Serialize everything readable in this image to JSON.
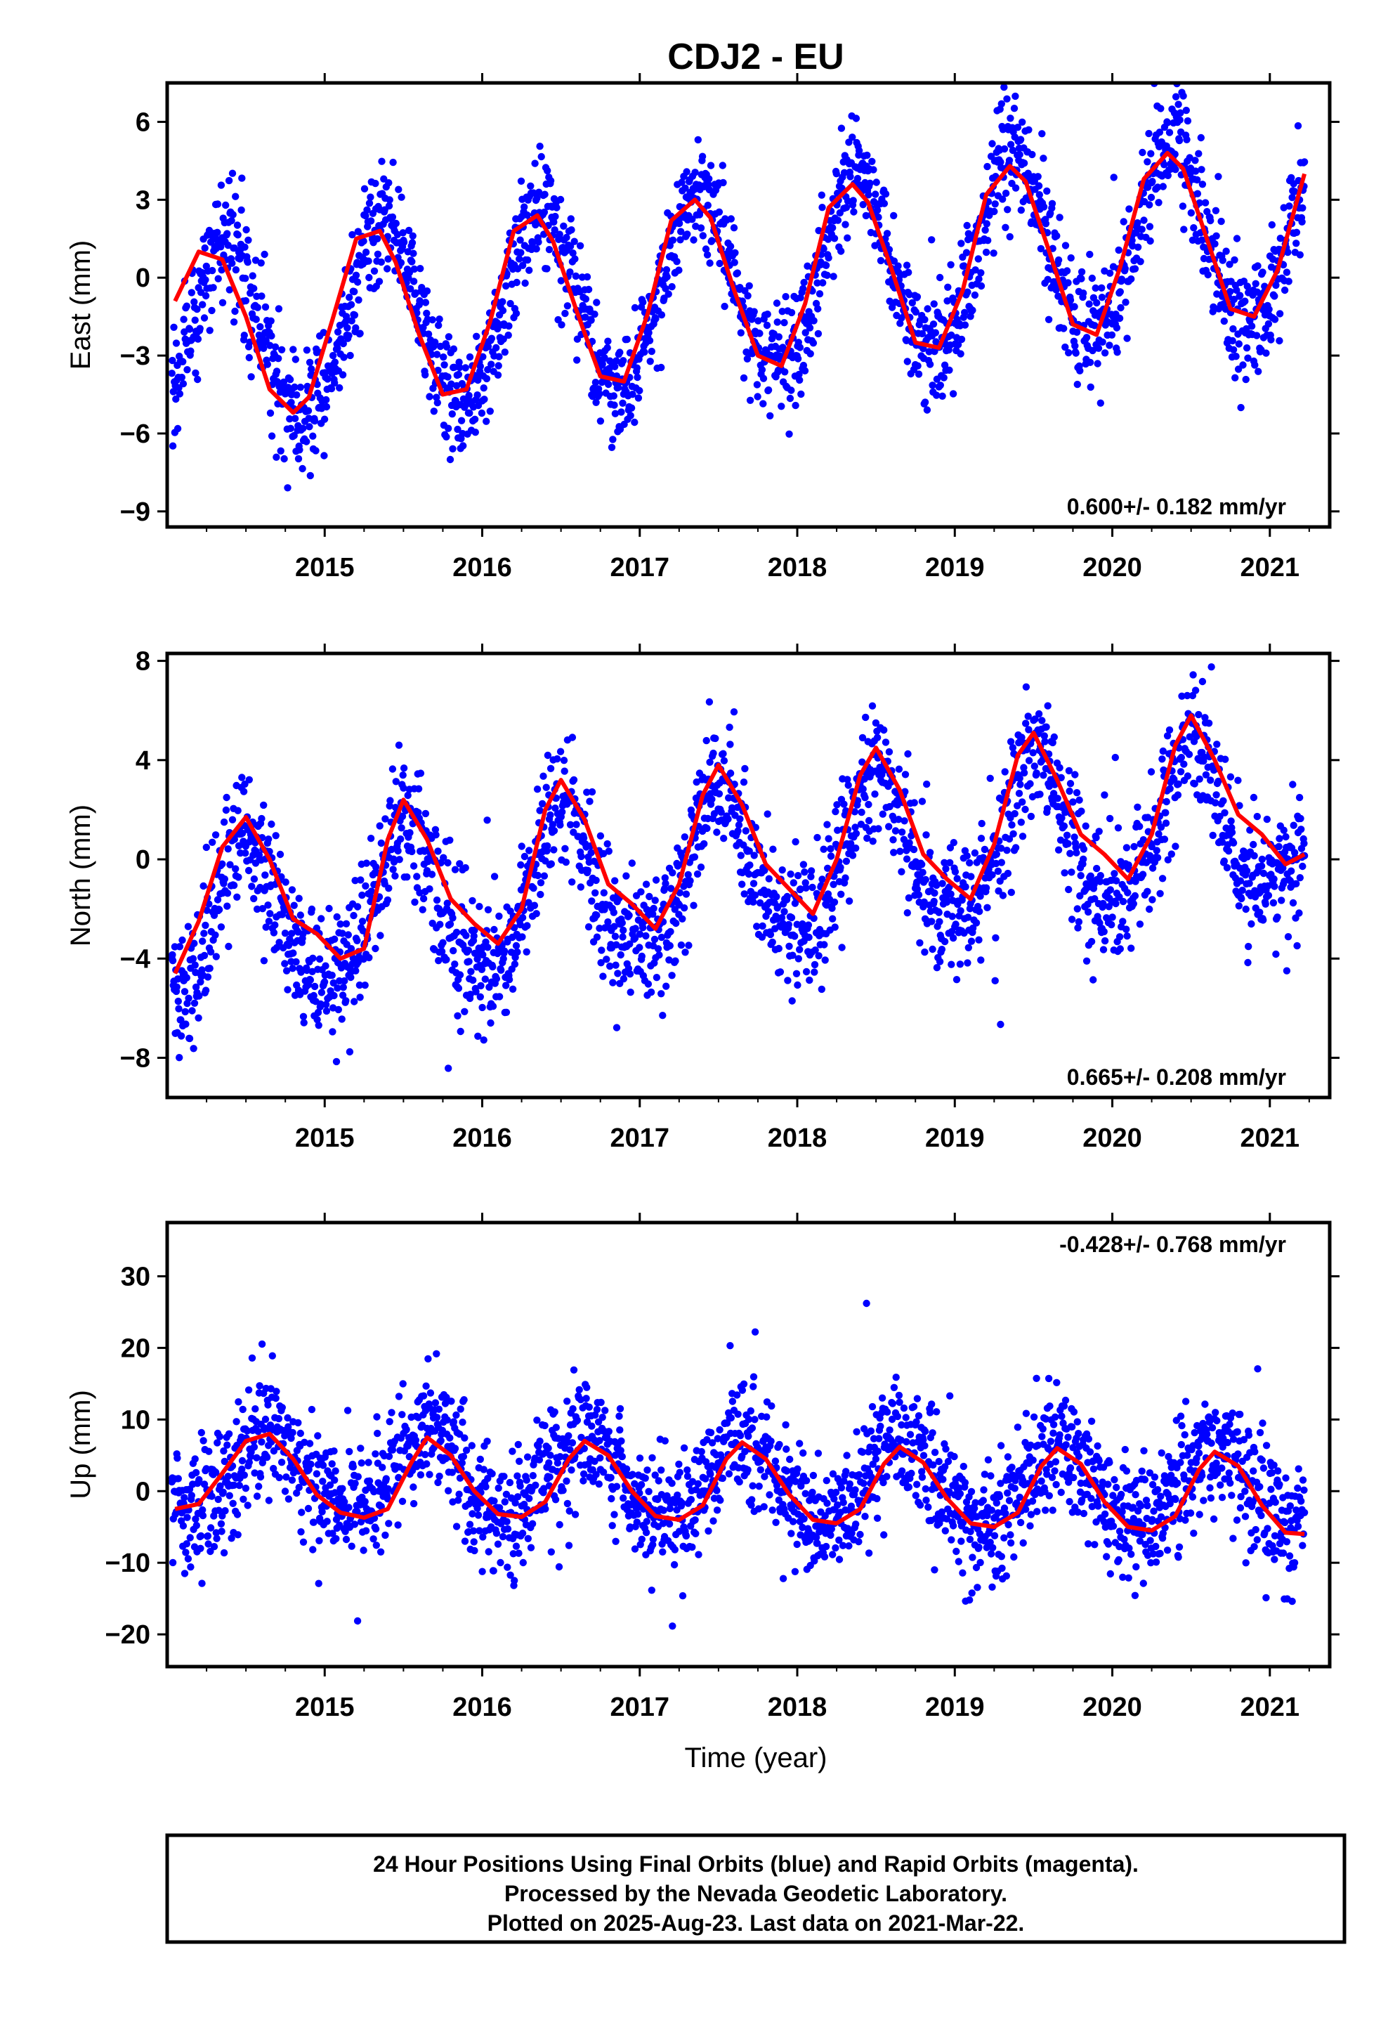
{
  "title": "CDJ2 - EU",
  "xlabel": "Time (year)",
  "x_ticks": [
    "2015",
    "2016",
    "2017",
    "2018",
    "2019",
    "2020",
    "2021"
  ],
  "footer": {
    "line1": "24 Hour Positions Using Final Orbits (blue) and Rapid Orbits (magenta).",
    "line2": "Processed by the Nevada Geodetic Laboratory.",
    "line3": "Plotted on 2025-Aug-23. Last data on 2021-Mar-22."
  },
  "colors": {
    "points": "#0000ff",
    "fit": "#ff0000",
    "frame": "#000000"
  },
  "chart_data": [
    {
      "type": "scatter",
      "name_panel": "east",
      "ylabel": "East (mm)",
      "rate_text": "0.600+/- 0.182 mm/yr",
      "xlim": [
        2014.0,
        2021.38
      ],
      "ylim": [
        -9.6,
        7.5
      ],
      "y_ticks": [
        -9,
        -6,
        -3,
        0,
        3,
        6
      ],
      "data_range": [
        2014.03,
        2021.22
      ],
      "point_model": {
        "mean": -0.3,
        "trend_mm_per_yr": 0.6,
        "annual_amp": 3.6,
        "phase_peak": 0.37,
        "semiannual_amp": 0.3,
        "noise_sd": 1.1
      },
      "fit_line": {
        "x": [
          2014.05,
          2014.2,
          2014.35,
          2014.5,
          2014.65,
          2014.8,
          2014.9,
          2015.05,
          2015.2,
          2015.35,
          2015.45,
          2015.6,
          2015.75,
          2015.9,
          2016.05,
          2016.2,
          2016.35,
          2016.45,
          2016.6,
          2016.75,
          2016.9,
          2017.05,
          2017.2,
          2017.35,
          2017.45,
          2017.6,
          2017.75,
          2017.9,
          2018.05,
          2018.2,
          2018.35,
          2018.45,
          2018.6,
          2018.75,
          2018.9,
          2019.05,
          2019.2,
          2019.35,
          2019.45,
          2019.6,
          2019.75,
          2019.9,
          2020.05,
          2020.2,
          2020.35,
          2020.45,
          2020.6,
          2020.75,
          2020.9,
          2021.05,
          2021.22
        ],
        "y": [
          -0.9,
          1.0,
          0.7,
          -1.5,
          -4.3,
          -5.2,
          -4.6,
          -1.6,
          1.5,
          1.8,
          0.6,
          -2.2,
          -4.5,
          -4.3,
          -1.7,
          1.8,
          2.4,
          1.4,
          -1.3,
          -3.8,
          -4.0,
          -1.4,
          2.2,
          3.0,
          2.3,
          -0.5,
          -3.0,
          -3.4,
          -1.0,
          2.7,
          3.6,
          2.9,
          0.3,
          -2.5,
          -2.7,
          -0.5,
          3.2,
          4.3,
          3.7,
          1.0,
          -1.8,
          -2.2,
          0.4,
          3.8,
          4.8,
          4.2,
          1.5,
          -1.2,
          -1.5,
          0.3,
          4.0
        ]
      }
    },
    {
      "type": "scatter",
      "name_panel": "north",
      "ylabel": "North (mm)",
      "rate_text": "0.665+/- 0.208 mm/yr",
      "xlim": [
        2014.0,
        2021.38
      ],
      "ylim": [
        -9.6,
        8.3
      ],
      "y_ticks": [
        -8,
        -4,
        0,
        4,
        8
      ],
      "data_range": [
        2014.03,
        2021.22
      ],
      "point_model": {
        "mean": -0.6,
        "trend_mm_per_yr": 0.665,
        "annual_amp": 3.0,
        "phase_peak": 0.5,
        "semiannual_amp": 0.6,
        "noise_sd": 1.3
      },
      "fit_line": {
        "x": [
          2014.05,
          2014.2,
          2014.35,
          2014.5,
          2014.65,
          2014.8,
          2014.95,
          2015.1,
          2015.25,
          2015.4,
          2015.5,
          2015.65,
          2015.8,
          2015.95,
          2016.1,
          2016.25,
          2016.4,
          2016.5,
          2016.65,
          2016.8,
          2016.95,
          2017.1,
          2017.25,
          2017.4,
          2017.5,
          2017.65,
          2017.8,
          2017.95,
          2018.1,
          2018.25,
          2018.4,
          2018.5,
          2018.65,
          2018.8,
          2018.95,
          2019.1,
          2019.25,
          2019.4,
          2019.5,
          2019.65,
          2019.8,
          2019.95,
          2020.1,
          2020.25,
          2020.4,
          2020.5,
          2020.65,
          2020.8,
          2020.95,
          2021.1,
          2021.22
        ],
        "y": [
          -4.6,
          -2.5,
          0.5,
          1.7,
          0.0,
          -2.4,
          -3.0,
          -4.0,
          -3.6,
          0.8,
          2.4,
          0.8,
          -1.6,
          -2.6,
          -3.4,
          -2.0,
          2.0,
          3.2,
          1.6,
          -1.0,
          -1.8,
          -2.8,
          -1.0,
          2.6,
          3.8,
          2.2,
          -0.2,
          -1.2,
          -2.2,
          0.0,
          3.4,
          4.5,
          2.8,
          0.2,
          -0.8,
          -1.6,
          0.6,
          4.2,
          5.1,
          3.2,
          1.0,
          0.2,
          -0.8,
          1.0,
          4.6,
          5.8,
          4.0,
          1.8,
          1.0,
          -0.2,
          0.2
        ]
      }
    },
    {
      "type": "scatter",
      "name_panel": "up",
      "ylabel": "Up (mm)",
      "rate_text": "-0.428+/- 0.768 mm/yr",
      "xlim": [
        2014.0,
        2021.38
      ],
      "ylim": [
        -24.5,
        37.5
      ],
      "y_ticks": [
        -20,
        -10,
        0,
        10,
        20,
        30
      ],
      "data_range": [
        2014.03,
        2021.22
      ],
      "point_model": {
        "mean": 1.5,
        "trend_mm_per_yr": -0.43,
        "annual_amp": 5.8,
        "phase_peak": 0.65,
        "semiannual_amp": 0.6,
        "noise_sd": 4.4
      },
      "fit_line": {
        "x": [
          2014.05,
          2014.2,
          2014.35,
          2014.5,
          2014.65,
          2014.8,
          2014.95,
          2015.1,
          2015.25,
          2015.4,
          2015.55,
          2015.65,
          2015.8,
          2015.95,
          2016.1,
          2016.25,
          2016.4,
          2016.55,
          2016.65,
          2016.8,
          2016.95,
          2017.1,
          2017.25,
          2017.4,
          2017.55,
          2017.65,
          2017.8,
          2017.95,
          2018.1,
          2018.25,
          2018.4,
          2018.55,
          2018.65,
          2018.8,
          2018.95,
          2019.1,
          2019.25,
          2019.4,
          2019.55,
          2019.65,
          2019.8,
          2019.95,
          2020.1,
          2020.25,
          2020.4,
          2020.55,
          2020.65,
          2020.8,
          2020.95,
          2021.1,
          2021.22
        ],
        "y": [
          -2.5,
          -1.8,
          2.5,
          7.0,
          8.0,
          4.5,
          -0.5,
          -3.0,
          -3.7,
          -2.5,
          4.0,
          7.5,
          5.0,
          0.0,
          -3.2,
          -3.6,
          -1.5,
          4.5,
          7.0,
          5.0,
          0.0,
          -3.5,
          -4.0,
          -2.0,
          4.5,
          6.8,
          4.5,
          -0.5,
          -4.0,
          -4.5,
          -2.5,
          3.8,
          6.2,
          4.0,
          -1.0,
          -4.5,
          -5.0,
          -3.0,
          3.5,
          6.0,
          3.8,
          -1.5,
          -5.0,
          -5.5,
          -3.5,
          3.0,
          5.5,
          3.5,
          -2.0,
          -5.8,
          -6.0
        ]
      }
    }
  ]
}
